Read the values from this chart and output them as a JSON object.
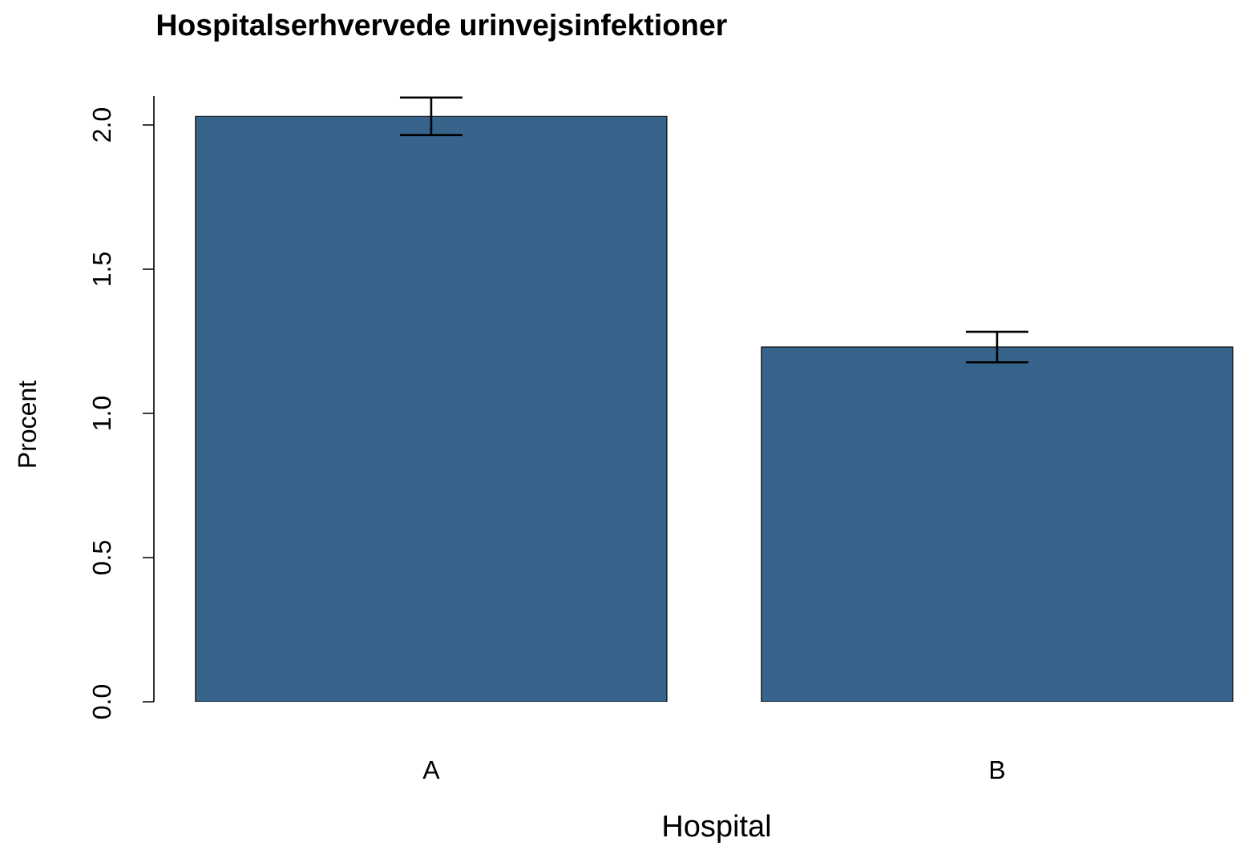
{
  "chart_data": {
    "type": "bar",
    "title": "Hospitalserhvervede urinvejsinfektioner",
    "xlabel": "Hospital",
    "ylabel": "Procent",
    "categories": [
      "A",
      "B"
    ],
    "values": [
      2.03,
      1.23
    ],
    "errors": [
      0.065,
      0.053
    ],
    "color": "#36648b",
    "ylim": [
      0,
      2.1
    ],
    "yticks": [
      {
        "value": 0,
        "label": "0.0"
      },
      0.5,
      {
        "value": 1,
        "label": "1.0"
      },
      1.5,
      {
        "value": 2,
        "label": "2.0"
      }
    ]
  }
}
